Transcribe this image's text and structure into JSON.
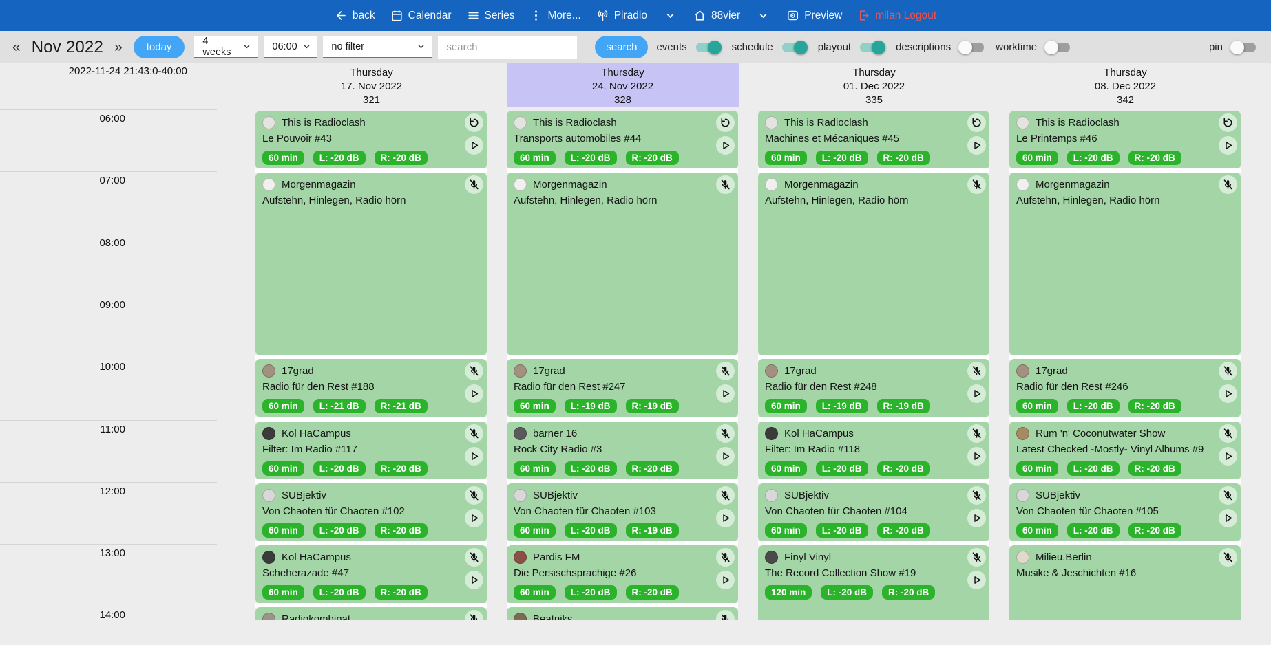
{
  "navbar": {
    "items": [
      {
        "id": "back",
        "label": "back",
        "icon": "arrow-left-icon"
      },
      {
        "id": "calendar",
        "label": "Calendar",
        "icon": "calendar-icon"
      },
      {
        "id": "series",
        "label": "Series",
        "icon": "list-icon"
      },
      {
        "id": "more",
        "label": "More...",
        "icon": "dots-vertical-icon"
      },
      {
        "id": "piradio",
        "label": "Piradio",
        "icon": "antenna-icon",
        "chevron": true
      },
      {
        "id": "88vier",
        "label": "88vier",
        "icon": "home-icon",
        "chevron": true
      },
      {
        "id": "preview",
        "label": "Preview",
        "icon": "preview-icon"
      },
      {
        "id": "logout",
        "label": "milan Logout",
        "icon": "logout-icon",
        "color": "#ef5350"
      }
    ]
  },
  "toolbar": {
    "prev": "«",
    "month_label": "Nov 2022",
    "next": "»",
    "today_label": "today",
    "range_select": "4 weeks",
    "time_select": "06:00",
    "filter_select": "no filter",
    "search_placeholder": "search",
    "search_button": "search",
    "toggles": [
      {
        "id": "events",
        "label": "events",
        "on": true
      },
      {
        "id": "schedule",
        "label": "schedule",
        "on": true
      },
      {
        "id": "playout",
        "label": "playout",
        "on": true
      },
      {
        "id": "descriptions",
        "label": "descriptions",
        "on": false
      },
      {
        "id": "worktime",
        "label": "worktime",
        "on": false
      }
    ],
    "pin_toggle": {
      "id": "pin",
      "label": "pin",
      "on": false
    }
  },
  "colors": {
    "accent_blue": "#42a5f5",
    "navbar_blue": "#1565c0",
    "logout_red": "#ef5350",
    "toggle_teal": "#26a69a",
    "event_green": "#a3d5a6",
    "badge_green": "#2cb32c",
    "highlight_purple": "#c7c3f4"
  },
  "grid": {
    "timestamp": "2022-11-24 21:43:0-40:00",
    "time_labels": [
      "06:00",
      "07:00",
      "08:00",
      "09:00",
      "10:00",
      "11:00",
      "12:00",
      "13:00",
      "14:00"
    ],
    "columns": [
      {
        "weekday": "Thursday",
        "date": "17. Nov 2022",
        "number": "321",
        "highlight": false,
        "events": [
          {
            "show": "This is Radioclash",
            "episode": "Le Pouvoir #43",
            "start": 6,
            "duration_min": 60,
            "badges": [
              "60 min",
              "L: -20 dB",
              "R: -20 dB"
            ],
            "corner_icon": "replay-icon",
            "play": true,
            "avatar_color": "#e3e3df"
          },
          {
            "show": "Morgenmagazin",
            "episode": "Aufstehn, Hinlegen, Radio hörn",
            "start": 7,
            "duration_min": 180,
            "badges": [],
            "corner_icon": "mic-off-icon",
            "play": false,
            "avatar_color": "#f0f0ee"
          },
          {
            "show": "17grad",
            "episode": "Radio für den Rest #188",
            "start": 10,
            "duration_min": 60,
            "badges": [
              "60 min",
              "L: -21 dB",
              "R: -21 dB"
            ],
            "corner_icon": "mic-off-icon",
            "play": true,
            "avatar_color": "#a39180"
          },
          {
            "show": "Kol HaCampus",
            "episode": "Filter: Im Radio #117",
            "start": 11,
            "duration_min": 60,
            "badges": [
              "60 min",
              "L: -20 dB",
              "R: -20 dB"
            ],
            "corner_icon": "mic-off-icon",
            "play": true,
            "avatar_color": "#3b3b3b"
          },
          {
            "show": "SUBjektiv",
            "episode": "Von Chaoten für Chaoten #102",
            "start": 12,
            "duration_min": 60,
            "badges": [
              "60 min",
              "L: -20 dB",
              "R: -20 dB"
            ],
            "corner_icon": "mic-off-icon",
            "play": true,
            "avatar_color": "#d8d8d8"
          },
          {
            "show": "Kol HaCampus",
            "episode": "Scheherazade #47",
            "start": 13,
            "duration_min": 60,
            "badges": [
              "60 min",
              "L: -20 dB",
              "R: -20 dB"
            ],
            "corner_icon": "mic-off-icon",
            "play": true,
            "avatar_color": "#3b3b3b"
          },
          {
            "show": "Radiokombinat",
            "episode": "",
            "start": 14,
            "duration_min": 60,
            "badges": [],
            "corner_icon": "mic-off-icon",
            "play": true,
            "avatar_color": "#9c948a"
          }
        ]
      },
      {
        "weekday": "Thursday",
        "date": "24. Nov 2022",
        "number": "328",
        "highlight": true,
        "events": [
          {
            "show": "This is Radioclash",
            "episode": "Transports automobiles #44",
            "start": 6,
            "duration_min": 60,
            "badges": [
              "60 min",
              "L: -20 dB",
              "R: -20 dB"
            ],
            "corner_icon": "replay-icon",
            "play": true,
            "avatar_color": "#e3e3df"
          },
          {
            "show": "Morgenmagazin",
            "episode": "Aufstehn, Hinlegen, Radio hörn",
            "start": 7,
            "duration_min": 180,
            "badges": [],
            "corner_icon": "mic-off-icon",
            "play": false,
            "avatar_color": "#f0f0ee"
          },
          {
            "show": "17grad",
            "episode": "Radio für den Rest #247",
            "start": 10,
            "duration_min": 60,
            "badges": [
              "60 min",
              "L: -19 dB",
              "R: -19 dB"
            ],
            "corner_icon": "mic-off-icon",
            "play": true,
            "avatar_color": "#a39180"
          },
          {
            "show": "barner 16",
            "episode": "Rock City Radio #3",
            "start": 11,
            "duration_min": 60,
            "badges": [
              "60 min",
              "L: -20 dB",
              "R: -20 dB"
            ],
            "corner_icon": "mic-off-icon",
            "play": true,
            "avatar_color": "#5a5a5a"
          },
          {
            "show": "SUBjektiv",
            "episode": "Von Chaoten für Chaoten #103",
            "start": 12,
            "duration_min": 60,
            "badges": [
              "60 min",
              "L: -20 dB",
              "R: -19 dB"
            ],
            "corner_icon": "mic-off-icon",
            "play": true,
            "avatar_color": "#d8d8d8"
          },
          {
            "show": "Pardis FM",
            "episode": "Die Persischsprachige #26",
            "start": 13,
            "duration_min": 60,
            "badges": [
              "60 min",
              "L: -20 dB",
              "R: -20 dB"
            ],
            "corner_icon": "mic-off-icon",
            "play": true,
            "avatar_color": "#8a4f45"
          },
          {
            "show": "Beatniks",
            "episode": "",
            "start": 14,
            "duration_min": 60,
            "badges": [],
            "corner_icon": "mic-off-icon",
            "play": true,
            "avatar_color": "#7d6a52"
          }
        ]
      },
      {
        "weekday": "Thursday",
        "date": "01. Dec 2022",
        "number": "335",
        "highlight": false,
        "events": [
          {
            "show": "This is Radioclash",
            "episode": "Machines et Mécaniques #45",
            "start": 6,
            "duration_min": 60,
            "badges": [
              "60 min",
              "L: -20 dB",
              "R: -20 dB"
            ],
            "corner_icon": "replay-icon",
            "play": true,
            "avatar_color": "#e3e3df"
          },
          {
            "show": "Morgenmagazin",
            "episode": "Aufstehn, Hinlegen, Radio hörn",
            "start": 7,
            "duration_min": 180,
            "badges": [],
            "corner_icon": "mic-off-icon",
            "play": false,
            "avatar_color": "#f0f0ee"
          },
          {
            "show": "17grad",
            "episode": "Radio für den Rest #248",
            "start": 10,
            "duration_min": 60,
            "badges": [
              "60 min",
              "L: -19 dB",
              "R: -19 dB"
            ],
            "corner_icon": "mic-off-icon",
            "play": true,
            "avatar_color": "#a39180"
          },
          {
            "show": "Kol HaCampus",
            "episode": "Filter: Im Radio #118",
            "start": 11,
            "duration_min": 60,
            "badges": [
              "60 min",
              "L: -20 dB",
              "R: -20 dB"
            ],
            "corner_icon": "mic-off-icon",
            "play": true,
            "avatar_color": "#3b3b3b"
          },
          {
            "show": "SUBjektiv",
            "episode": "Von Chaoten für Chaoten #104",
            "start": 12,
            "duration_min": 60,
            "badges": [
              "60 min",
              "L: -20 dB",
              "R: -20 dB"
            ],
            "corner_icon": "mic-off-icon",
            "play": true,
            "avatar_color": "#d8d8d8"
          },
          {
            "show": "Finyl Vinyl",
            "episode": "The Record Collection Show #19",
            "start": 13,
            "duration_min": 120,
            "badges": [
              "120 min",
              "L: -20 dB",
              "R: -20 dB"
            ],
            "corner_icon": "mic-off-icon",
            "play": true,
            "avatar_color": "#4a4a4a"
          }
        ]
      },
      {
        "weekday": "Thursday",
        "date": "08. Dec 2022",
        "number": "342",
        "highlight": false,
        "events": [
          {
            "show": "This is Radioclash",
            "episode": "Le Printemps #46",
            "start": 6,
            "duration_min": 60,
            "badges": [
              "60 min",
              "L: -20 dB",
              "R: -20 dB"
            ],
            "corner_icon": "replay-icon",
            "play": true,
            "avatar_color": "#e3e3df"
          },
          {
            "show": "Morgenmagazin",
            "episode": "Aufstehn, Hinlegen, Radio hörn",
            "start": 7,
            "duration_min": 180,
            "badges": [],
            "corner_icon": "mic-off-icon",
            "play": false,
            "avatar_color": "#f0f0ee"
          },
          {
            "show": "17grad",
            "episode": "Radio für den Rest #246",
            "start": 10,
            "duration_min": 60,
            "badges": [
              "60 min",
              "L: -20 dB",
              "R: -20 dB"
            ],
            "corner_icon": "mic-off-icon",
            "play": true,
            "avatar_color": "#a39180"
          },
          {
            "show": "Rum 'n' Coconutwater Show",
            "episode": "Latest Checked -Mostly- Vinyl Albums #9",
            "start": 11,
            "duration_min": 60,
            "badges": [
              "60 min",
              "L: -20 dB",
              "R: -20 dB"
            ],
            "corner_icon": "mic-off-icon",
            "play": true,
            "avatar_color": "#a58a64"
          },
          {
            "show": "SUBjektiv",
            "episode": "Von Chaoten für Chaoten #105",
            "start": 12,
            "duration_min": 60,
            "badges": [
              "60 min",
              "L: -20 dB",
              "R: -20 dB"
            ],
            "corner_icon": "mic-off-icon",
            "play": true,
            "avatar_color": "#d8d8d8"
          },
          {
            "show": "Milieu.Berlin",
            "episode": "Musike & Jeschichten #16",
            "start": 13,
            "duration_min": 120,
            "badges": [],
            "corner_icon": "mic-off-icon",
            "play": false,
            "avatar_color": "#e0dacc"
          }
        ]
      }
    ]
  }
}
